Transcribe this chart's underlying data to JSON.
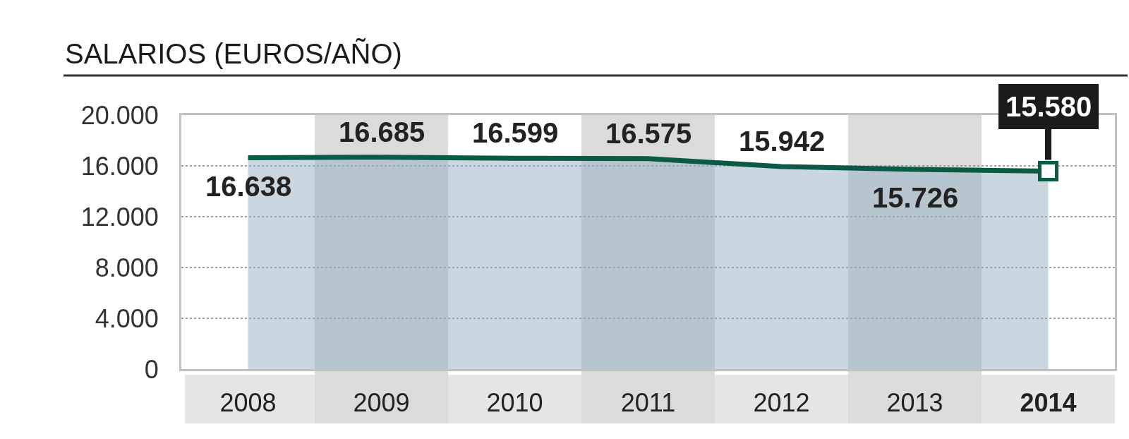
{
  "chart_data": {
    "type": "area",
    "title": "SALARIOS (EUROS/AÑO)",
    "x": [
      2008,
      2009,
      2010,
      2011,
      2012,
      2013,
      2014
    ],
    "xlim": [
      2007.5,
      2014.5
    ],
    "xticks": [
      2008,
      2009,
      2010,
      2011,
      2012,
      2013,
      2014
    ],
    "ylim": [
      0,
      20000
    ],
    "yticks": [
      0,
      {
        "value": 4000,
        "label": "4.000"
      },
      {
        "value": 8000,
        "label": "8.000"
      },
      {
        "value": 12000,
        "label": "12.000"
      },
      {
        "value": 16000,
        "label": "16.000"
      },
      {
        "value": 20000,
        "label": "20.000"
      }
    ],
    "grid": "y",
    "bands": [
      {
        "axis": "x",
        "from": 2008.5,
        "to": 2009.5,
        "color": "#d9dcd8"
      },
      {
        "axis": "x",
        "from": 2010.5,
        "to": 2011.5,
        "color": "#d9dcd8"
      },
      {
        "axis": "x",
        "from": 2012.5,
        "to": 2013.5,
        "color": "#d9dcd8"
      }
    ],
    "series": [
      {
        "color": "#0b5a46",
        "values": [
          16638,
          16685,
          16599,
          16575,
          15942,
          15726,
          15580
        ],
        "value_labels": [
          "16.638",
          "16.685",
          "16.599",
          "16.575",
          "15.942",
          "15.726",
          null
        ]
      },
      {
        "type": "scatter",
        "color": "#0b5a46",
        "marker": "square",
        "x": [
          2014
        ],
        "values": [
          15580
        ],
        "value_labels": [
          "15.580"
        ]
      }
    ]
  }
}
